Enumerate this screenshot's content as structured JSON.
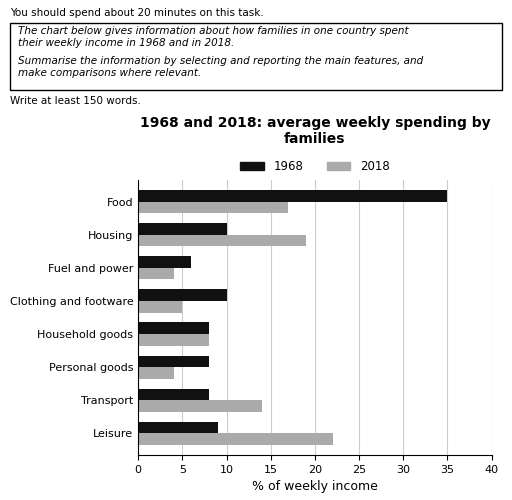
{
  "chart_data": {
    "type": "bar",
    "orientation": "horizontal",
    "title": "1968 and 2018: average weekly spending by families",
    "xlabel": "% of weekly income",
    "annotations": [
      "You should spend about 20 minutes on this task.",
      "The chart below gives information about how families in one country spent\ntheir weekly income in 1968 and in 2018.",
      "Summarise the information by selecting and reporting the main features, and\nmake comparisons where relevant.",
      "Write at least 150 words."
    ],
    "categories": [
      "Leisure",
      "Transport",
      "Personal goods",
      "Household goods",
      "Clothing and footware",
      "Fuel and power",
      "Housing",
      "Food"
    ],
    "series": [
      {
        "name": "1968",
        "color": "#111111",
        "values": [
          9,
          8,
          8,
          8,
          10,
          6,
          10,
          35
        ]
      },
      {
        "name": "2018",
        "color": "#aaaaaa",
        "values": [
          22,
          14,
          4,
          8,
          5,
          4,
          19,
          17
        ]
      }
    ],
    "xlim": [
      0,
      40
    ],
    "xticks": [
      0,
      5,
      10,
      15,
      20,
      25,
      30,
      35,
      40
    ],
    "grid": true,
    "legend": "upper center"
  }
}
